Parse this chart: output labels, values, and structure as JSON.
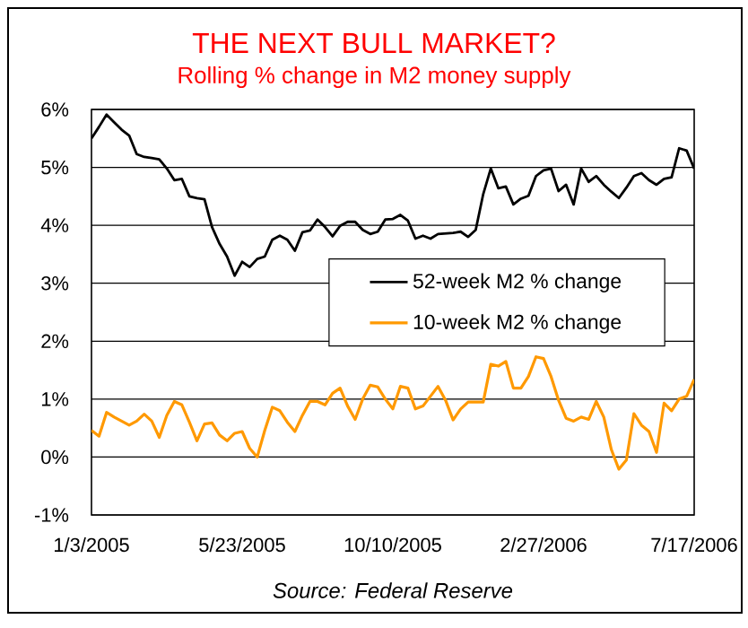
{
  "chart_data": {
    "type": "line",
    "title": "THE NEXT BULL MARKET?",
    "subtitle": "Rolling % change in M2 money supply",
    "annotations": [
      "Source: Federal Reserve"
    ],
    "x": [
      "2005-01-03",
      "2005-01-10",
      "2005-01-17",
      "2005-01-24",
      "2005-01-31",
      "2005-02-07",
      "2005-02-14",
      "2005-02-21",
      "2005-02-28",
      "2005-03-07",
      "2005-03-14",
      "2005-03-21",
      "2005-03-28",
      "2005-04-04",
      "2005-04-11",
      "2005-04-18",
      "2005-04-25",
      "2005-05-02",
      "2005-05-09",
      "2005-05-16",
      "2005-05-23",
      "2005-05-30",
      "2005-06-06",
      "2005-06-13",
      "2005-06-20",
      "2005-06-27",
      "2005-07-04",
      "2005-07-11",
      "2005-07-18",
      "2005-07-25",
      "2005-08-01",
      "2005-08-08",
      "2005-08-15",
      "2005-08-22",
      "2005-08-29",
      "2005-09-05",
      "2005-09-12",
      "2005-09-19",
      "2005-09-26",
      "2005-10-03",
      "2005-10-10",
      "2005-10-17",
      "2005-10-24",
      "2005-10-31",
      "2005-11-07",
      "2005-11-14",
      "2005-11-21",
      "2005-11-28",
      "2005-12-05",
      "2005-12-12",
      "2005-12-19",
      "2005-12-26",
      "2006-01-02",
      "2006-01-09",
      "2006-01-16",
      "2006-01-23",
      "2006-01-30",
      "2006-02-06",
      "2006-02-13",
      "2006-02-20",
      "2006-02-27",
      "2006-03-06",
      "2006-03-13",
      "2006-03-20",
      "2006-03-27",
      "2006-04-03",
      "2006-04-10",
      "2006-04-17",
      "2006-04-24",
      "2006-05-01",
      "2006-05-08",
      "2006-05-15",
      "2006-05-22",
      "2006-05-29",
      "2006-06-05",
      "2006-06-12",
      "2006-06-19",
      "2006-06-26",
      "2006-07-03",
      "2006-07-10",
      "2006-07-17"
    ],
    "series": [
      {
        "name": "52-week M2 % change",
        "color": "#000000",
        "values": [
          5.5,
          5.7,
          5.91,
          5.78,
          5.65,
          5.55,
          5.23,
          5.18,
          5.16,
          5.14,
          4.98,
          4.78,
          4.8,
          4.5,
          4.47,
          4.45,
          3.97,
          3.68,
          3.46,
          3.13,
          3.37,
          3.28,
          3.42,
          3.46,
          3.75,
          3.82,
          3.75,
          3.56,
          3.88,
          3.91,
          4.1,
          3.97,
          3.81,
          3.99,
          4.06,
          4.06,
          3.92,
          3.85,
          3.89,
          4.1,
          4.11,
          4.18,
          4.08,
          3.77,
          3.82,
          3.77,
          3.85,
          3.86,
          3.87,
          3.89,
          3.8,
          3.92,
          4.54,
          4.98,
          4.64,
          4.67,
          4.36,
          4.46,
          4.51,
          4.85,
          4.95,
          4.98,
          4.59,
          4.7,
          4.36,
          4.98,
          4.75,
          4.85,
          4.7,
          4.58,
          4.47,
          4.65,
          4.85,
          4.9,
          4.78,
          4.7,
          4.8,
          4.83,
          5.33,
          5.29,
          4.98
        ]
      },
      {
        "name": "10-week M2 % change",
        "color": "#ff9900",
        "values": [
          0.46,
          0.36,
          0.77,
          0.69,
          0.62,
          0.55,
          0.62,
          0.74,
          0.62,
          0.34,
          0.72,
          0.96,
          0.9,
          0.6,
          0.28,
          0.57,
          0.59,
          0.38,
          0.28,
          0.41,
          0.44,
          0.15,
          0.0,
          0.46,
          0.86,
          0.8,
          0.6,
          0.44,
          0.72,
          0.96,
          0.96,
          0.9,
          1.1,
          1.19,
          0.88,
          0.65,
          1.0,
          1.24,
          1.21,
          1.0,
          0.83,
          1.22,
          1.19,
          0.83,
          0.88,
          1.05,
          1.22,
          0.98,
          0.64,
          0.83,
          0.95,
          0.95,
          0.95,
          1.6,
          1.57,
          1.65,
          1.19,
          1.19,
          1.39,
          1.73,
          1.7,
          1.39,
          0.98,
          0.67,
          0.62,
          0.69,
          0.65,
          0.96,
          0.69,
          0.13,
          -0.21,
          -0.05,
          0.75,
          0.55,
          0.44,
          0.08,
          0.93,
          0.8,
          1.0,
          1.05,
          1.34
        ]
      }
    ],
    "xlim": [
      "2005-01-03",
      "2006-07-17"
    ],
    "xticks": [
      {
        "value": "2005-01-03",
        "label": "1/3/2005"
      },
      {
        "value": "2005-05-23",
        "label": "5/23/2005"
      },
      {
        "value": "2005-10-10",
        "label": "10/10/2005"
      },
      {
        "value": "2006-02-27",
        "label": "2/27/2006"
      },
      {
        "value": "2006-07-17",
        "label": "7/17/2006"
      }
    ],
    "ylim": [
      -1,
      6
    ],
    "yticks": [
      {
        "value": -1,
        "label": "-1%"
      },
      {
        "value": 0,
        "label": "0%"
      },
      {
        "value": 1,
        "label": "1%"
      },
      {
        "value": 2,
        "label": "2%"
      },
      {
        "value": 3,
        "label": "3%"
      },
      {
        "value": 4,
        "label": "4%"
      },
      {
        "value": 5,
        "label": "5%"
      },
      {
        "value": 6,
        "label": "6%"
      }
    ],
    "grid": "y",
    "legend": "right",
    "marker": "none",
    "line_style": "solid"
  }
}
